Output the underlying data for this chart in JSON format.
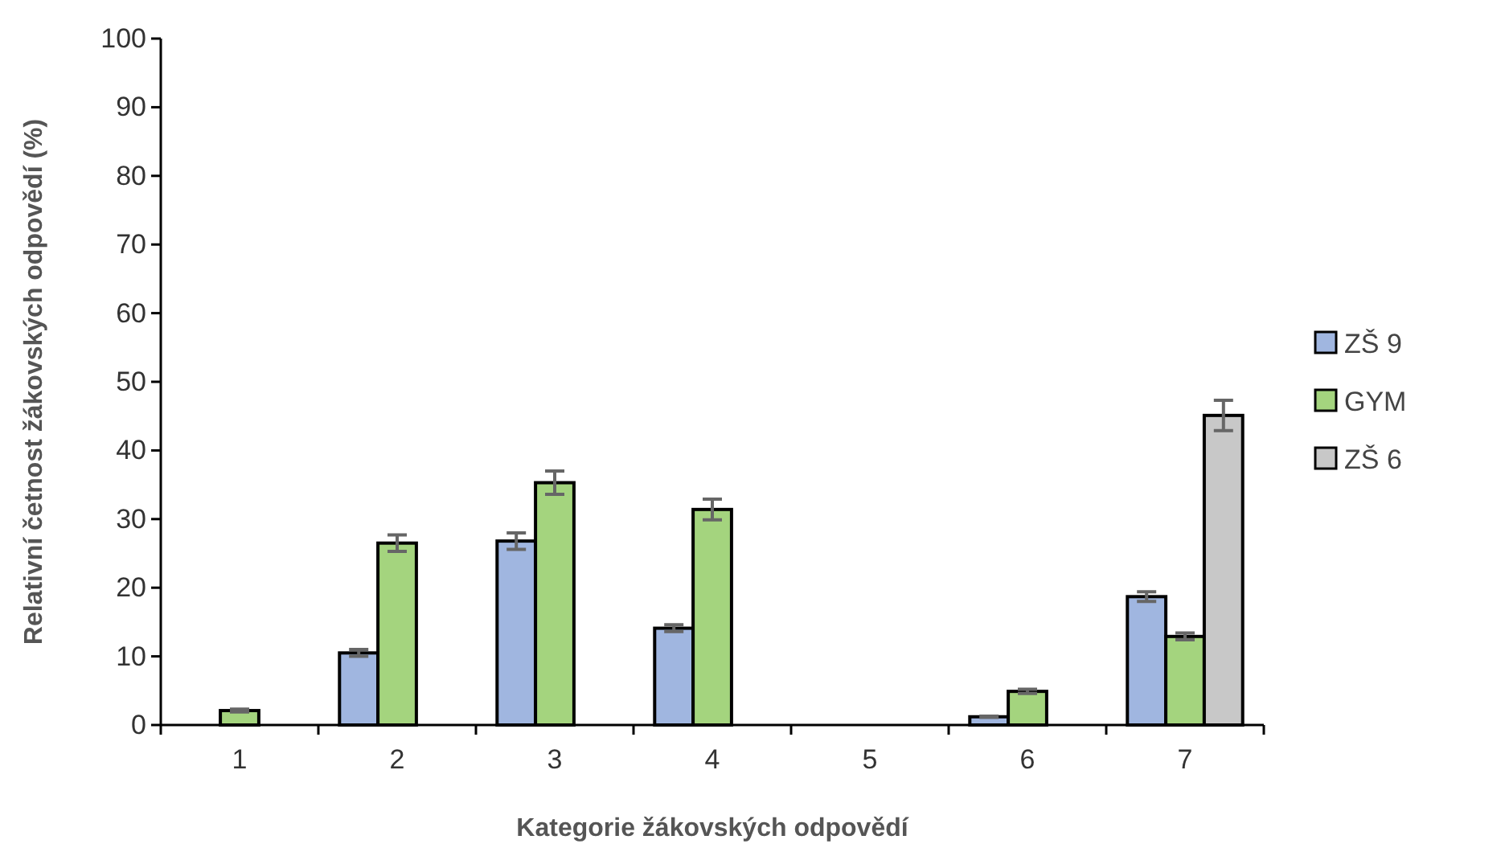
{
  "chart_data": {
    "type": "bar",
    "xlabel": "Kategorie žákovských odpovědí",
    "ylabel": "Relativní četnost žákovských odpovědí (%)",
    "categories": [
      "1",
      "2",
      "3",
      "4",
      "5",
      "6",
      "7"
    ],
    "series": [
      {
        "name": "ZŠ 9",
        "color": "#a0b6e0",
        "values": [
          0,
          10.5,
          26.8,
          14.1,
          0,
          1.2,
          18.7
        ],
        "errors": [
          null,
          0.5,
          1.2,
          0.5,
          null,
          0.1,
          0.7
        ]
      },
      {
        "name": "GYM",
        "color": "#a4d47e",
        "values": [
          2.1,
          26.5,
          35.3,
          31.4,
          0,
          4.9,
          12.9
        ],
        "errors": [
          0.2,
          1.2,
          1.7,
          1.5,
          null,
          0.3,
          0.5
        ]
      },
      {
        "name": "ZŠ 6",
        "color": "#c8c8c8",
        "values": [
          0,
          0,
          0,
          0,
          0,
          0,
          45.1
        ],
        "errors": [
          null,
          null,
          null,
          null,
          null,
          null,
          2.2
        ]
      }
    ],
    "ylim": [
      0,
      100
    ],
    "yticks": [
      0,
      10,
      20,
      30,
      40,
      50,
      60,
      70,
      80,
      90,
      100
    ],
    "grid": false,
    "legend": "right"
  }
}
